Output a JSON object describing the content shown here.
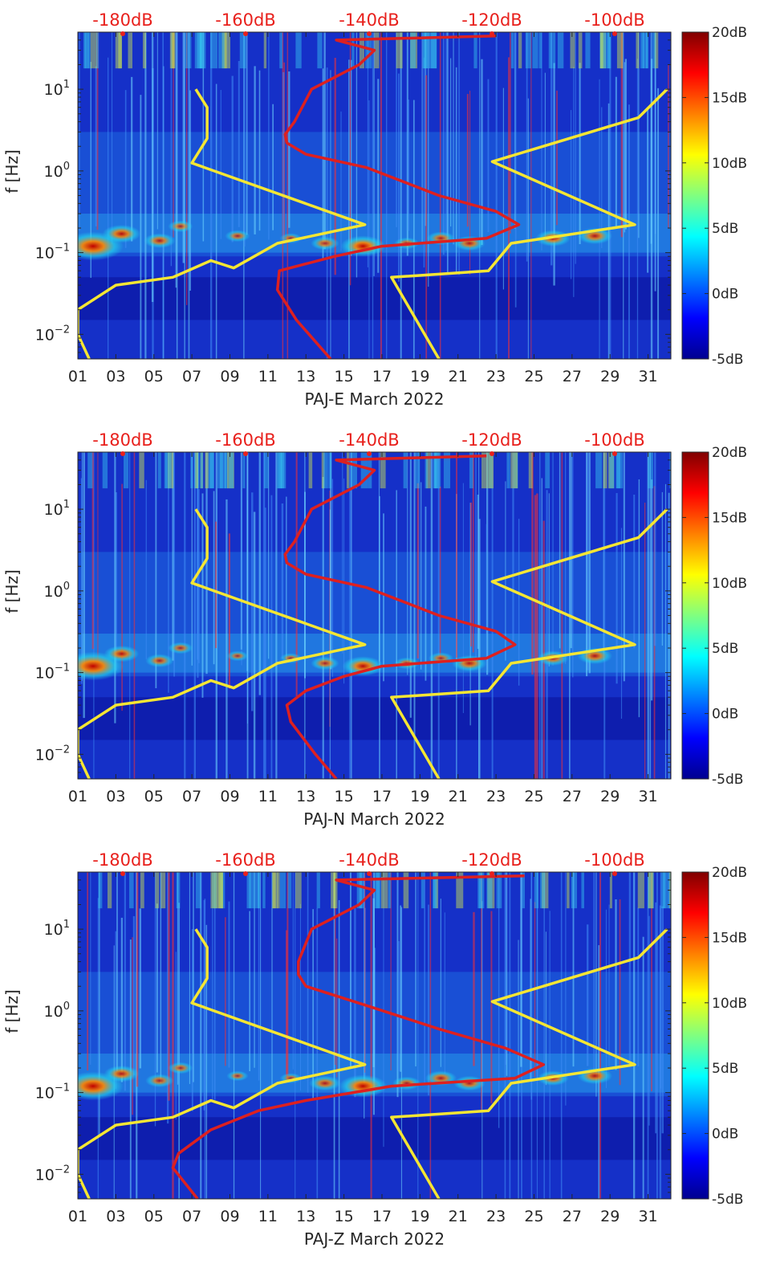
{
  "chart_data": [
    {
      "type": "heatmap",
      "station": "PAJ-E",
      "xlabel": "PAJ-E March 2022",
      "ylabel": "f [Hz]",
      "x_ticks": [
        "01",
        "03",
        "05",
        "07",
        "09",
        "11",
        "13",
        "15",
        "17",
        "19",
        "21",
        "23",
        "25",
        "27",
        "29",
        "31"
      ],
      "y_ticks": [
        {
          "value": 0.01,
          "label": "10⁻²"
        },
        {
          "value": 0.1,
          "label": "10⁻¹"
        },
        {
          "value": 1,
          "label": "10⁰"
        },
        {
          "value": 10,
          "label": "10¹"
        }
      ],
      "xlim_days": [
        1,
        32.2
      ],
      "ylim_hz": [
        0.005,
        50
      ],
      "colorbar": {
        "ticks": [
          "20dB",
          "15dB",
          "10dB",
          "5dB",
          "0dB",
          "-5dB"
        ],
        "range_db": [
          -5,
          20
        ]
      },
      "top_scale_labels": [
        "-180dB",
        "-160dB",
        "-140dB",
        "-120dB",
        "-100dB"
      ],
      "hotspots": [
        {
          "day": 1.8,
          "hz": 0.12,
          "level_db": 20
        },
        {
          "day": 3.3,
          "hz": 0.17,
          "level_db": 13
        },
        {
          "day": 5.3,
          "hz": 0.14,
          "level_db": 11
        },
        {
          "day": 6.4,
          "hz": 0.21,
          "level_db": 9
        },
        {
          "day": 9.4,
          "hz": 0.16,
          "level_db": 9
        },
        {
          "day": 12.2,
          "hz": 0.15,
          "level_db": 8
        },
        {
          "day": 14.0,
          "hz": 0.13,
          "level_db": 10
        },
        {
          "day": 16.0,
          "hz": 0.12,
          "level_db": 15
        },
        {
          "day": 18.3,
          "hz": 0.13,
          "level_db": 9
        },
        {
          "day": 20.1,
          "hz": 0.15,
          "level_db": 10
        },
        {
          "day": 21.6,
          "hz": 0.13,
          "level_db": 11
        },
        {
          "day": 26.0,
          "hz": 0.15,
          "level_db": 12
        },
        {
          "day": 28.2,
          "hz": 0.16,
          "level_db": 12
        }
      ],
      "noise_models": [
        {
          "name": "lower model (left)",
          "color": "#f5e633",
          "points": [
            [
              7.2,
              10
            ],
            [
              7.8,
              6
            ],
            [
              7.8,
              2.5
            ],
            [
              7.0,
              1.25
            ],
            [
              16.1,
              0.22
            ],
            [
              11.5,
              0.13
            ],
            [
              9.2,
              0.065
            ],
            [
              8.0,
              0.08
            ],
            [
              6.0,
              0.05
            ],
            [
              3.0,
              0.04
            ],
            [
              1.0,
              0.02
            ],
            [
              1.0,
              0.01
            ],
            [
              1.6,
              0.005
            ]
          ]
        },
        {
          "name": "upper model (right)",
          "color": "#f5e633",
          "points": [
            [
              32.0,
              10
            ],
            [
              30.5,
              4.5
            ],
            [
              22.8,
              1.3
            ],
            [
              30.3,
              0.22
            ],
            [
              23.8,
              0.13
            ],
            [
              22.6,
              0.06
            ],
            [
              17.5,
              0.05
            ],
            [
              20.0,
              0.005
            ]
          ]
        },
        {
          "name": "station median",
          "color": "#dd2020",
          "points": [
            [
              23.0,
              45
            ],
            [
              14.6,
              40
            ],
            [
              16.6,
              30
            ],
            [
              15.8,
              20
            ],
            [
              13.3,
              10
            ],
            [
              12.4,
              4
            ],
            [
              11.9,
              2.8
            ],
            [
              12.0,
              2.2
            ],
            [
              13.0,
              1.6
            ],
            [
              16.2,
              1.1
            ],
            [
              20.0,
              0.5
            ],
            [
              23.0,
              0.32
            ],
            [
              24.2,
              0.22
            ],
            [
              22.5,
              0.15
            ],
            [
              17.0,
              0.12
            ],
            [
              14.5,
              0.09
            ],
            [
              11.6,
              0.06
            ],
            [
              11.5,
              0.035
            ],
            [
              12.5,
              0.015
            ],
            [
              14.3,
              0.005
            ]
          ]
        }
      ]
    },
    {
      "type": "heatmap",
      "station": "PAJ-N",
      "xlabel": "PAJ-N March 2022",
      "ylabel": "f [Hz]",
      "x_ticks": [
        "01",
        "03",
        "05",
        "07",
        "09",
        "11",
        "13",
        "15",
        "17",
        "19",
        "21",
        "23",
        "25",
        "27",
        "29",
        "31"
      ],
      "y_ticks": [
        {
          "value": 0.01,
          "label": "10⁻²"
        },
        {
          "value": 0.1,
          "label": "10⁻¹"
        },
        {
          "value": 1,
          "label": "10⁰"
        },
        {
          "value": 10,
          "label": "10¹"
        }
      ],
      "xlim_days": [
        1,
        32.2
      ],
      "ylim_hz": [
        0.005,
        50
      ],
      "colorbar": {
        "ticks": [
          "20dB",
          "15dB",
          "10dB",
          "5dB",
          "0dB",
          "-5dB"
        ],
        "range_db": [
          -5,
          20
        ]
      },
      "top_scale_labels": [
        "-180dB",
        "-160dB",
        "-140dB",
        "-120dB",
        "-100dB"
      ],
      "hotspots": [
        {
          "day": 1.8,
          "hz": 0.12,
          "level_db": 20
        },
        {
          "day": 3.3,
          "hz": 0.17,
          "level_db": 12
        },
        {
          "day": 5.3,
          "hz": 0.14,
          "level_db": 10
        },
        {
          "day": 6.4,
          "hz": 0.2,
          "level_db": 9
        },
        {
          "day": 9.4,
          "hz": 0.16,
          "level_db": 8
        },
        {
          "day": 12.2,
          "hz": 0.15,
          "level_db": 8
        },
        {
          "day": 14.0,
          "hz": 0.13,
          "level_db": 10
        },
        {
          "day": 16.0,
          "hz": 0.12,
          "level_db": 14
        },
        {
          "day": 18.3,
          "hz": 0.13,
          "level_db": 9
        },
        {
          "day": 20.1,
          "hz": 0.15,
          "level_db": 9
        },
        {
          "day": 21.6,
          "hz": 0.13,
          "level_db": 12
        },
        {
          "day": 26.0,
          "hz": 0.15,
          "level_db": 11
        },
        {
          "day": 28.2,
          "hz": 0.16,
          "level_db": 12
        }
      ],
      "noise_models": [
        {
          "name": "lower model (left)",
          "color": "#f5e633",
          "points": [
            [
              7.2,
              10
            ],
            [
              7.8,
              6
            ],
            [
              7.8,
              2.5
            ],
            [
              7.0,
              1.25
            ],
            [
              16.1,
              0.22
            ],
            [
              11.5,
              0.13
            ],
            [
              9.2,
              0.065
            ],
            [
              8.0,
              0.08
            ],
            [
              6.0,
              0.05
            ],
            [
              3.0,
              0.04
            ],
            [
              1.0,
              0.02
            ],
            [
              1.0,
              0.01
            ],
            [
              1.6,
              0.005
            ]
          ]
        },
        {
          "name": "upper model (right)",
          "color": "#f5e633",
          "points": [
            [
              32.0,
              10
            ],
            [
              30.5,
              4.5
            ],
            [
              22.8,
              1.3
            ],
            [
              30.3,
              0.22
            ],
            [
              23.8,
              0.13
            ],
            [
              22.6,
              0.06
            ],
            [
              17.5,
              0.05
            ],
            [
              20.0,
              0.005
            ]
          ]
        },
        {
          "name": "station median",
          "color": "#dd2020",
          "points": [
            [
              22.5,
              45
            ],
            [
              14.6,
              40
            ],
            [
              16.6,
              30
            ],
            [
              15.8,
              20
            ],
            [
              13.3,
              10
            ],
            [
              12.4,
              4
            ],
            [
              11.9,
              2.8
            ],
            [
              12.0,
              2.2
            ],
            [
              13.0,
              1.6
            ],
            [
              16.2,
              1.1
            ],
            [
              20.0,
              0.5
            ],
            [
              23.0,
              0.32
            ],
            [
              24.0,
              0.22
            ],
            [
              22.5,
              0.15
            ],
            [
              17.0,
              0.12
            ],
            [
              15.0,
              0.09
            ],
            [
              13.0,
              0.06
            ],
            [
              12.0,
              0.04
            ],
            [
              12.2,
              0.025
            ],
            [
              13.5,
              0.01
            ],
            [
              14.6,
              0.005
            ]
          ]
        }
      ]
    },
    {
      "type": "heatmap",
      "station": "PAJ-Z",
      "xlabel": "PAJ-Z March 2022",
      "ylabel": "f [Hz]",
      "x_ticks": [
        "01",
        "03",
        "05",
        "07",
        "09",
        "11",
        "13",
        "15",
        "17",
        "19",
        "21",
        "23",
        "25",
        "27",
        "29",
        "31"
      ],
      "y_ticks": [
        {
          "value": 0.01,
          "label": "10⁻²"
        },
        {
          "value": 0.1,
          "label": "10⁻¹"
        },
        {
          "value": 1,
          "label": "10⁰"
        },
        {
          "value": 10,
          "label": "10¹"
        }
      ],
      "xlim_days": [
        1,
        32.2
      ],
      "ylim_hz": [
        0.005,
        50
      ],
      "colorbar": {
        "ticks": [
          "20dB",
          "15dB",
          "10dB",
          "5dB",
          "0dB",
          "-5dB"
        ],
        "range_db": [
          -5,
          20
        ]
      },
      "top_scale_labels": [
        "-180dB",
        "-160dB",
        "-140dB",
        "-120dB",
        "-100dB"
      ],
      "hotspots": [
        {
          "day": 1.8,
          "hz": 0.12,
          "level_db": 20
        },
        {
          "day": 3.3,
          "hz": 0.17,
          "level_db": 12
        },
        {
          "day": 5.3,
          "hz": 0.14,
          "level_db": 10
        },
        {
          "day": 6.4,
          "hz": 0.2,
          "level_db": 9
        },
        {
          "day": 9.4,
          "hz": 0.16,
          "level_db": 8
        },
        {
          "day": 12.2,
          "hz": 0.15,
          "level_db": 8
        },
        {
          "day": 14.0,
          "hz": 0.13,
          "level_db": 11
        },
        {
          "day": 16.0,
          "hz": 0.12,
          "level_db": 16
        },
        {
          "day": 18.3,
          "hz": 0.13,
          "level_db": 10
        },
        {
          "day": 20.1,
          "hz": 0.15,
          "level_db": 11
        },
        {
          "day": 21.6,
          "hz": 0.13,
          "level_db": 11
        },
        {
          "day": 26.0,
          "hz": 0.15,
          "level_db": 11
        },
        {
          "day": 28.2,
          "hz": 0.16,
          "level_db": 12
        }
      ],
      "noise_models": [
        {
          "name": "lower model (left)",
          "color": "#f5e633",
          "points": [
            [
              7.2,
              10
            ],
            [
              7.8,
              6
            ],
            [
              7.8,
              2.5
            ],
            [
              7.0,
              1.25
            ],
            [
              16.1,
              0.22
            ],
            [
              11.5,
              0.13
            ],
            [
              9.2,
              0.065
            ],
            [
              8.0,
              0.08
            ],
            [
              6.0,
              0.05
            ],
            [
              3.0,
              0.04
            ],
            [
              1.0,
              0.02
            ],
            [
              1.0,
              0.01
            ],
            [
              1.6,
              0.005
            ]
          ]
        },
        {
          "name": "upper model (right)",
          "color": "#f5e633",
          "points": [
            [
              32.0,
              10
            ],
            [
              30.5,
              4.5
            ],
            [
              22.8,
              1.3
            ],
            [
              30.3,
              0.22
            ],
            [
              23.8,
              0.13
            ],
            [
              22.6,
              0.06
            ],
            [
              17.5,
              0.05
            ],
            [
              20.0,
              0.005
            ]
          ]
        },
        {
          "name": "station median",
          "color": "#dd2020",
          "points": [
            [
              24.5,
              45
            ],
            [
              14.6,
              40
            ],
            [
              16.6,
              30
            ],
            [
              15.8,
              20
            ],
            [
              13.3,
              10
            ],
            [
              12.6,
              4
            ],
            [
              12.6,
              2.8
            ],
            [
              13.0,
              2.0
            ],
            [
              16.0,
              1.2
            ],
            [
              20.0,
              0.6
            ],
            [
              23.5,
              0.35
            ],
            [
              25.5,
              0.22
            ],
            [
              24.0,
              0.15
            ],
            [
              17.5,
              0.12
            ],
            [
              13.0,
              0.08
            ],
            [
              10.5,
              0.06
            ],
            [
              8.0,
              0.035
            ],
            [
              6.3,
              0.018
            ],
            [
              6.0,
              0.012
            ],
            [
              7.3,
              0.005
            ]
          ]
        }
      ]
    }
  ]
}
